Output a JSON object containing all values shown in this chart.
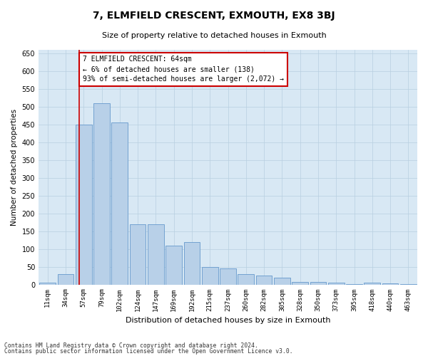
{
  "title": "7, ELMFIELD CRESCENT, EXMOUTH, EX8 3BJ",
  "subtitle": "Size of property relative to detached houses in Exmouth",
  "xlabel": "Distribution of detached houses by size in Exmouth",
  "ylabel": "Number of detached properties",
  "categories": [
    "11sqm",
    "34sqm",
    "57sqm",
    "79sqm",
    "102sqm",
    "124sqm",
    "147sqm",
    "169sqm",
    "192sqm",
    "215sqm",
    "237sqm",
    "260sqm",
    "282sqm",
    "305sqm",
    "328sqm",
    "350sqm",
    "373sqm",
    "395sqm",
    "418sqm",
    "440sqm",
    "463sqm"
  ],
  "values": [
    5,
    30,
    450,
    510,
    455,
    170,
    170,
    110,
    120,
    50,
    45,
    30,
    25,
    20,
    8,
    8,
    5,
    2,
    5,
    3,
    2
  ],
  "bar_color": "#b8d0e8",
  "bar_edge_color": "#6699cc",
  "background_color": "#d8e8f4",
  "grid_color": "#b8cfe0",
  "property_label": "7 ELMFIELD CRESCENT: 64sqm",
  "annotation_line1": "← 6% of detached houses are smaller (138)",
  "annotation_line2": "93% of semi-detached houses are larger (2,072) →",
  "red_line_color": "#cc0000",
  "annotation_box_facecolor": "#ffffff",
  "annotation_box_edgecolor": "#cc0000",
  "footnote1": "Contains HM Land Registry data © Crown copyright and database right 2024.",
  "footnote2": "Contains public sector information licensed under the Open Government Licence v3.0.",
  "ylim": [
    0,
    660
  ],
  "yticks": [
    0,
    50,
    100,
    150,
    200,
    250,
    300,
    350,
    400,
    450,
    500,
    550,
    600,
    650
  ],
  "red_line_x": 1.75
}
